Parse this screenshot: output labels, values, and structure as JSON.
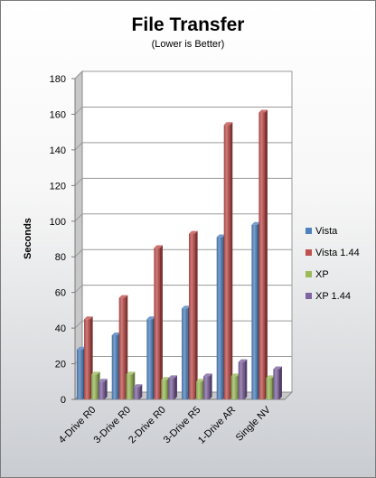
{
  "chart_data": {
    "type": "bar",
    "title": "File Transfer",
    "subtitle": "(Lower is Better)",
    "xlabel": "",
    "ylabel": "Seconds",
    "ylim": [
      0,
      180
    ],
    "yticks": [
      0,
      20,
      40,
      60,
      80,
      100,
      120,
      140,
      160,
      180
    ],
    "grid": true,
    "legend_position": "right",
    "categories": [
      "4-Drive R0",
      "3-Drive R0",
      "2-Drive R0",
      "3-Drive R5",
      "1-Drive AR",
      "Single NV"
    ],
    "series": [
      {
        "name": "Vista",
        "color": "#4f81bd",
        "values": [
          28,
          36,
          45,
          51,
          91,
          98
        ]
      },
      {
        "name": "Vista 1.44",
        "color": "#c0504d",
        "values": [
          45,
          57,
          85,
          93,
          154,
          161
        ]
      },
      {
        "name": "XP",
        "color": "#9bbb59",
        "values": [
          14,
          14,
          11,
          10,
          13,
          12
        ]
      },
      {
        "name": "XP 1.44",
        "color": "#8064a2",
        "values": [
          10,
          7,
          12,
          13,
          21,
          17
        ]
      }
    ]
  }
}
